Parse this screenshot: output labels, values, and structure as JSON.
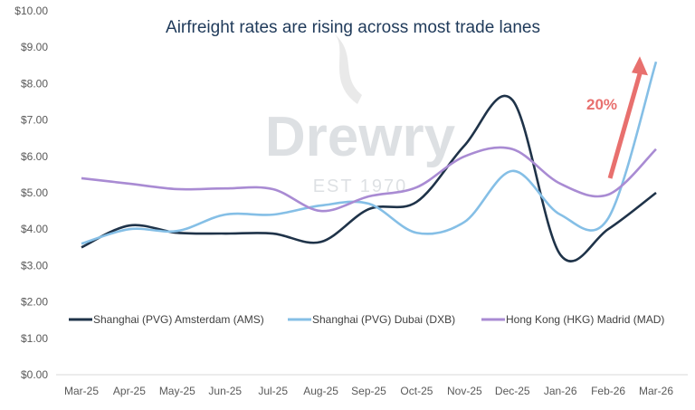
{
  "chart_data": {
    "type": "line",
    "title": "Airfreight rates are rising across most  trade lanes",
    "xlabel": "",
    "ylabel": "",
    "categories": [
      "Mar-25",
      "Apr-25",
      "May-25",
      "Jun-25",
      "Jul-25",
      "Aug-25",
      "Sep-25",
      "Oct-25",
      "Nov-25",
      "Dec-25",
      "Jan-26",
      "Feb-26",
      "Mar-26"
    ],
    "ylim": [
      0,
      10
    ],
    "yticks": [
      "$0.00",
      "$1.00",
      "$2.00",
      "$3.00",
      "$4.00",
      "$5.00",
      "$6.00",
      "$7.00",
      "$8.00",
      "$9.00",
      "$10.00"
    ],
    "grid": false,
    "legend_placement": "bottom-inside",
    "series": [
      {
        "name": "Shanghai (PVG) Amsterdam (AMS)",
        "color": "#1f3349",
        "values": [
          3.5,
          4.1,
          3.9,
          3.88,
          3.88,
          3.65,
          4.55,
          4.75,
          6.3,
          7.55,
          3.3,
          4.0,
          5.0
        ]
      },
      {
        "name": "Shanghai (PVG) Dubai (DXB)",
        "color": "#85bfe6",
        "values": [
          3.6,
          4.0,
          3.95,
          4.4,
          4.4,
          4.65,
          4.7,
          3.9,
          4.2,
          5.6,
          4.4,
          4.3,
          8.6
        ]
      },
      {
        "name": "Hong Kong (HKG) Madrid (MAD)",
        "color": "#a98bd3",
        "values": [
          5.4,
          5.25,
          5.1,
          5.12,
          5.1,
          4.5,
          4.9,
          5.15,
          6.0,
          6.2,
          5.25,
          4.95,
          6.2
        ]
      }
    ],
    "annotation": {
      "text": "20%",
      "color": "#e8706e",
      "arrow_from": [
        "Feb-26",
        5.4
      ],
      "arrow_to": [
        "Mar-26",
        8.5
      ]
    },
    "watermark": {
      "text": "Drewry",
      "subtext": "EST 1970"
    }
  }
}
